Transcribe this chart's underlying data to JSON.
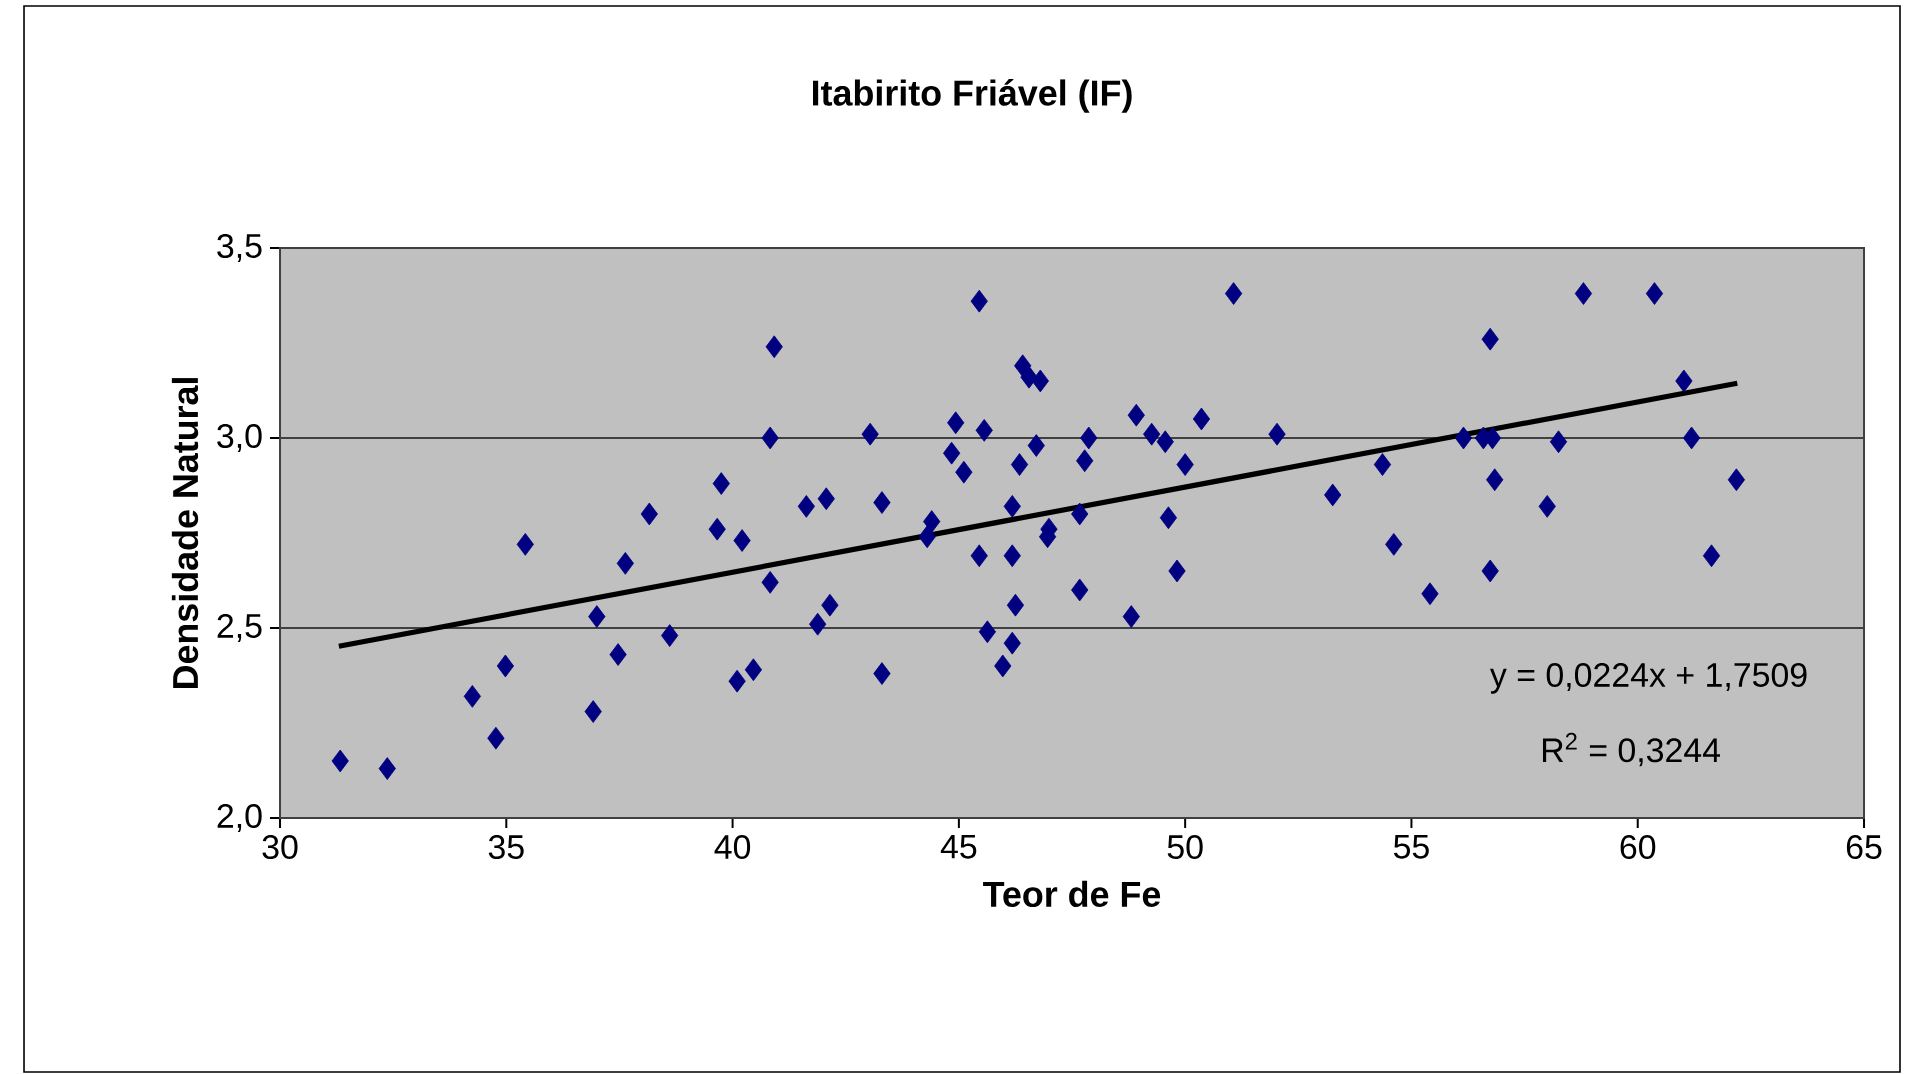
{
  "chart_data": {
    "type": "scatter",
    "title": "Itabirito Friável (IF)",
    "xlabel": "Teor de Fe",
    "ylabel": "Densidade Natural",
    "xlim": [
      30,
      65
    ],
    "xticks": [
      30,
      35,
      40,
      45,
      50,
      55,
      60,
      65
    ],
    "ylim": [
      2.0,
      3.5
    ],
    "yticks": [
      {
        "value": 2.0,
        "label": "2,0"
      },
      {
        "value": 2.5,
        "label": "2,5"
      },
      {
        "value": 3.0,
        "label": "3,0"
      },
      {
        "value": 3.5,
        "label": "3,5"
      }
    ],
    "grid": "y",
    "series": [
      {
        "color": "#000080",
        "marker": "diamond",
        "x": [
          31.33,
          32.37,
          34.25,
          34.77,
          34.98,
          35.42,
          36.92,
          37.0,
          37.47,
          37.63,
          38.16,
          38.61,
          39.75,
          39.66,
          40.21,
          40.1,
          40.46,
          40.83,
          40.83,
          40.92,
          41.63,
          42.07,
          41.88,
          42.15,
          43.04,
          43.3,
          43.3,
          44.3,
          44.4,
          44.93,
          44.84,
          45.11,
          45.45,
          45.56,
          45.45,
          45.63,
          46.18,
          46.18,
          46.25,
          46.18,
          45.97,
          46.34,
          46.41,
          46.55,
          46.8,
          46.71,
          46.99,
          46.96,
          47.67,
          47.78,
          47.87,
          47.67,
          48.81,
          48.92,
          49.26,
          49.56,
          49.63,
          49.82,
          50.0,
          50.36,
          51.07,
          52.03,
          53.26,
          54.36,
          54.61,
          55.41,
          56.15,
          56.59,
          56.79,
          56.74,
          56.84,
          56.74,
          58.0,
          58.25,
          58.8,
          60.37,
          61.02,
          61.19,
          62.18,
          61.63
        ],
        "values": [
          2.15,
          2.13,
          2.32,
          2.21,
          2.4,
          2.72,
          2.28,
          2.53,
          2.43,
          2.67,
          2.8,
          2.48,
          2.88,
          2.76,
          2.73,
          2.36,
          2.39,
          2.62,
          3.0,
          3.24,
          2.82,
          2.84,
          2.51,
          2.56,
          3.01,
          2.83,
          2.38,
          2.74,
          2.78,
          3.04,
          2.96,
          2.91,
          3.36,
          3.02,
          2.69,
          2.49,
          2.82,
          2.69,
          2.56,
          2.46,
          2.4,
          2.93,
          3.19,
          3.16,
          3.15,
          2.98,
          2.76,
          2.74,
          2.8,
          2.94,
          3.0,
          2.6,
          2.53,
          3.06,
          3.01,
          2.99,
          2.79,
          2.65,
          2.93,
          3.05,
          3.38,
          3.01,
          2.85,
          2.93,
          2.72,
          2.59,
          3.0,
          3.0,
          3.0,
          3.26,
          2.89,
          2.65,
          2.82,
          2.99,
          3.38,
          3.38,
          3.15,
          3.0,
          2.89,
          2.69
        ]
      },
      {
        "type": "line",
        "color": "#000000",
        "line_style": "solid",
        "x": [
          31.3,
          62.2
        ],
        "values": [
          2.452,
          3.144
        ]
      }
    ],
    "annotations": [
      "y = 0,0224x + 1,7509",
      "R$^{2}$ = 0,3244"
    ]
  }
}
